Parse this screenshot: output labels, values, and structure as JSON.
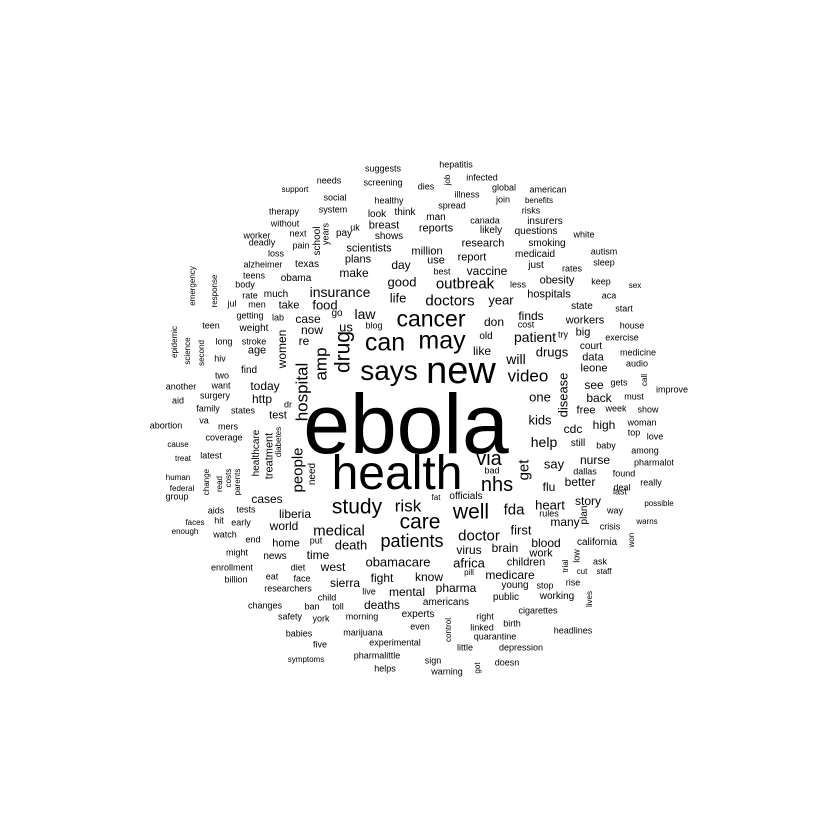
{
  "word_cloud": {
    "text_color": "#000000",
    "background": "#ffffff",
    "words": [
      {
        "text": "ebola",
        "weight": 100
      },
      {
        "text": "health",
        "weight": 58
      },
      {
        "text": "new",
        "weight": 45
      },
      {
        "text": "says",
        "weight": 34
      },
      {
        "text": "may",
        "weight": 30
      },
      {
        "text": "can",
        "weight": 30
      },
      {
        "text": "cancer",
        "weight": 28
      },
      {
        "text": "drug",
        "weight": 25
      },
      {
        "text": "study",
        "weight": 25
      },
      {
        "text": "care",
        "weight": 25
      },
      {
        "text": "well",
        "weight": 25
      },
      {
        "text": "via",
        "weight": 24
      },
      {
        "text": "nhs",
        "weight": 24
      },
      {
        "text": "patients",
        "weight": 22
      },
      {
        "text": "hospital",
        "weight": 20
      },
      {
        "text": "video",
        "weight": 20
      },
      {
        "text": "amp",
        "weight": 20
      },
      {
        "text": "doctor",
        "weight": 18
      },
      {
        "text": "people",
        "weight": 18
      },
      {
        "text": "risk",
        "weight": 20
      },
      {
        "text": "medical",
        "weight": 18
      },
      {
        "text": "fda",
        "weight": 18
      },
      {
        "text": "get",
        "weight": 18
      },
      {
        "text": "doctors",
        "weight": 18
      },
      {
        "text": "outbreak",
        "weight": 18
      },
      {
        "text": "will",
        "weight": 17
      },
      {
        "text": "patient",
        "weight": 17
      },
      {
        "text": "help",
        "weight": 17
      },
      {
        "text": "insurance",
        "weight": 16
      },
      {
        "text": "law",
        "weight": 17
      },
      {
        "text": "us",
        "weight": 16
      },
      {
        "text": "say",
        "weight": 16
      },
      {
        "text": "kids",
        "weight": 16
      },
      {
        "text": "one",
        "weight": 16
      },
      {
        "text": "obamacare",
        "weight": 16
      },
      {
        "text": "africa",
        "weight": 16
      },
      {
        "text": "heart",
        "weight": 15
      },
      {
        "text": "first",
        "weight": 15
      },
      {
        "text": "good",
        "weight": 15
      },
      {
        "text": "life",
        "weight": 15
      },
      {
        "text": "year",
        "weight": 15
      },
      {
        "text": "food",
        "weight": 15
      },
      {
        "text": "drugs",
        "weight": 15
      },
      {
        "text": "disease",
        "weight": 15
      },
      {
        "text": "death",
        "weight": 15
      },
      {
        "text": "liberia",
        "weight": 14
      },
      {
        "text": "make",
        "weight": 14
      },
      {
        "text": "day",
        "weight": 14
      },
      {
        "text": "vaccine",
        "weight": 14
      },
      {
        "text": "like",
        "weight": 14
      },
      {
        "text": "today",
        "weight": 14
      },
      {
        "text": "women",
        "weight": 14
      },
      {
        "text": "virus",
        "weight": 14
      },
      {
        "text": "brain",
        "weight": 14
      },
      {
        "text": "blood",
        "weight": 14
      },
      {
        "text": "don",
        "weight": 14
      },
      {
        "text": "cdc",
        "weight": 14
      },
      {
        "text": "high",
        "weight": 14
      },
      {
        "text": "finds",
        "weight": 13
      },
      {
        "text": "case",
        "weight": 13
      },
      {
        "text": "now",
        "weight": 13
      },
      {
        "text": "world",
        "weight": 13
      },
      {
        "text": "http",
        "weight": 13
      },
      {
        "text": "cases",
        "weight": 13
      },
      {
        "text": "time",
        "weight": 13
      },
      {
        "text": "west",
        "weight": 13
      },
      {
        "text": "fight",
        "weight": 13
      },
      {
        "text": "sierra",
        "weight": 13
      },
      {
        "text": "know",
        "weight": 13
      },
      {
        "text": "pharma",
        "weight": 13
      },
      {
        "text": "mental",
        "weight": 13
      },
      {
        "text": "deaths",
        "weight": 13
      },
      {
        "text": "medicare",
        "weight": 13
      },
      {
        "text": "children",
        "weight": 12
      },
      {
        "text": "flu",
        "weight": 13
      },
      {
        "text": "nurse",
        "weight": 13
      },
      {
        "text": "better",
        "weight": 13
      },
      {
        "text": "story",
        "weight": 13
      },
      {
        "text": "many",
        "weight": 13
      },
      {
        "text": "hospitals",
        "weight": 12
      },
      {
        "text": "obesity",
        "weight": 12
      },
      {
        "text": "workers",
        "weight": 12
      },
      {
        "text": "back",
        "weight": 13
      },
      {
        "text": "see",
        "weight": 13
      },
      {
        "text": "leone",
        "weight": 12
      },
      {
        "text": "data",
        "weight": 12
      },
      {
        "text": "report",
        "weight": 12
      },
      {
        "text": "research",
        "weight": 12
      },
      {
        "text": "million",
        "weight": 12
      },
      {
        "text": "use",
        "weight": 12
      },
      {
        "text": "plans",
        "weight": 12
      },
      {
        "text": "scientists",
        "weight": 12
      },
      {
        "text": "breast",
        "weight": 12
      },
      {
        "text": "reports",
        "weight": 12
      },
      {
        "text": "take",
        "weight": 12
      },
      {
        "text": "age",
        "weight": 12
      },
      {
        "text": "re",
        "weight": 13
      },
      {
        "text": "test",
        "weight": 12
      },
      {
        "text": "home",
        "weight": 12
      },
      {
        "text": "work",
        "weight": 12
      },
      {
        "text": "free",
        "weight": 12
      },
      {
        "text": "still",
        "weight": 11
      },
      {
        "text": "treatment",
        "weight": 12
      },
      {
        "text": "healthcare",
        "weight": 11
      },
      {
        "text": "need",
        "weight": 11
      },
      {
        "text": "go",
        "weight": 11
      },
      {
        "text": "obama",
        "weight": 11
      },
      {
        "text": "much",
        "weight": 11
      },
      {
        "text": "weight",
        "weight": 11
      },
      {
        "text": "find",
        "weight": 11
      },
      {
        "text": "school",
        "weight": 11
      },
      {
        "text": "americans",
        "weight": 11
      },
      {
        "text": "experts",
        "weight": 11
      },
      {
        "text": "news",
        "weight": 11
      },
      {
        "text": "young",
        "weight": 11
      },
      {
        "text": "public",
        "weight": 11
      },
      {
        "text": "working",
        "weight": 11
      },
      {
        "text": "california",
        "weight": 11
      },
      {
        "text": "plan",
        "weight": 11
      },
      {
        "text": "court",
        "weight": 11
      },
      {
        "text": "state",
        "weight": 11
      },
      {
        "text": "big",
        "weight": 12
      },
      {
        "text": "just",
        "weight": 11
      },
      {
        "text": "old",
        "weight": 11
      },
      {
        "text": "cost",
        "weight": 10
      },
      {
        "text": "less",
        "weight": 10
      },
      {
        "text": "best",
        "weight": 10
      },
      {
        "text": "texas",
        "weight": 11
      },
      {
        "text": "pay",
        "weight": 11
      },
      {
        "text": "uk",
        "weight": 10
      },
      {
        "text": "think",
        "weight": 11
      },
      {
        "text": "look",
        "weight": 11
      },
      {
        "text": "man",
        "weight": 11
      },
      {
        "text": "shows",
        "weight": 11
      },
      {
        "text": "likely",
        "weight": 11
      },
      {
        "text": "canada",
        "weight": 10
      },
      {
        "text": "questions",
        "weight": 11
      },
      {
        "text": "smoking",
        "weight": 11
      },
      {
        "text": "medicaid",
        "weight": 11
      },
      {
        "text": "insurers",
        "weight": 11
      },
      {
        "text": "white",
        "weight": 10
      },
      {
        "text": "autism",
        "weight": 10
      },
      {
        "text": "sleep",
        "weight": 10
      },
      {
        "text": "rates",
        "weight": 10
      },
      {
        "text": "keep",
        "weight": 10
      },
      {
        "text": "aca",
        "weight": 10
      },
      {
        "text": "start",
        "weight": 10
      },
      {
        "text": "sex",
        "weight": 9
      },
      {
        "text": "exercise",
        "weight": 10
      },
      {
        "text": "house",
        "weight": 10
      },
      {
        "text": "medicine",
        "weight": 10
      },
      {
        "text": "audio",
        "weight": 10
      },
      {
        "text": "improve",
        "weight": 10
      },
      {
        "text": "call",
        "weight": 9
      },
      {
        "text": "gets",
        "weight": 10
      },
      {
        "text": "must",
        "weight": 10
      },
      {
        "text": "week",
        "weight": 10
      },
      {
        "text": "show",
        "weight": 10
      },
      {
        "text": "woman",
        "weight": 10
      },
      {
        "text": "top",
        "weight": 10
      },
      {
        "text": "love",
        "weight": 10
      },
      {
        "text": "among",
        "weight": 10
      },
      {
        "text": "pharmalot",
        "weight": 10
      },
      {
        "text": "found",
        "weight": 10
      },
      {
        "text": "deal",
        "weight": 10
      },
      {
        "text": "really",
        "weight": 10
      },
      {
        "text": "last",
        "weight": 10
      },
      {
        "text": "possible",
        "weight": 9
      },
      {
        "text": "warns",
        "weight": 9
      },
      {
        "text": "won",
        "weight": 9
      },
      {
        "text": "crisis",
        "weight": 10
      },
      {
        "text": "way",
        "weight": 10
      },
      {
        "text": "baby",
        "weight": 10
      },
      {
        "text": "dallas",
        "weight": 10
      },
      {
        "text": "rules",
        "weight": 10
      },
      {
        "text": "ask",
        "weight": 10
      },
      {
        "text": "staff",
        "weight": 9
      },
      {
        "text": "low",
        "weight": 10
      },
      {
        "text": "trial",
        "weight": 9
      },
      {
        "text": "cut",
        "weight": 9
      },
      {
        "text": "rise",
        "weight": 10
      },
      {
        "text": "lives",
        "weight": 9
      },
      {
        "text": "stop",
        "weight": 10
      },
      {
        "text": "cigarettes",
        "weight": 10
      },
      {
        "text": "headlines",
        "weight": 10
      },
      {
        "text": "birth",
        "weight": 10
      },
      {
        "text": "right",
        "weight": 10
      },
      {
        "text": "linked",
        "weight": 10
      },
      {
        "text": "quarantine",
        "weight": 10
      },
      {
        "text": "depression",
        "weight": 10
      },
      {
        "text": "doesn",
        "weight": 10
      },
      {
        "text": "got",
        "weight": 9
      },
      {
        "text": "little",
        "weight": 10
      },
      {
        "text": "control",
        "weight": 9
      },
      {
        "text": "sign",
        "weight": 10
      },
      {
        "text": "warning",
        "weight": 10
      },
      {
        "text": "even",
        "weight": 10
      },
      {
        "text": "experimental",
        "weight": 10
      },
      {
        "text": "pharmalittle",
        "weight": 10
      },
      {
        "text": "helps",
        "weight": 10
      },
      {
        "text": "marijuana",
        "weight": 10
      },
      {
        "text": "morning",
        "weight": 10
      },
      {
        "text": "live",
        "weight": 10
      },
      {
        "text": "toll",
        "weight": 10
      },
      {
        "text": "ban",
        "weight": 10
      },
      {
        "text": "child",
        "weight": 10
      },
      {
        "text": "york",
        "weight": 10
      },
      {
        "text": "five",
        "weight": 10
      },
      {
        "text": "babies",
        "weight": 10
      },
      {
        "text": "symptoms",
        "weight": 9
      },
      {
        "text": "safety",
        "weight": 10
      },
      {
        "text": "changes",
        "weight": 10
      },
      {
        "text": "researchers",
        "weight": 10
      },
      {
        "text": "face",
        "weight": 10
      },
      {
        "text": "eat",
        "weight": 10
      },
      {
        "text": "billion",
        "weight": 10
      },
      {
        "text": "diet",
        "weight": 10
      },
      {
        "text": "put",
        "weight": 10
      },
      {
        "text": "enrollment",
        "weight": 10
      },
      {
        "text": "might",
        "weight": 10
      },
      {
        "text": "end",
        "weight": 10
      },
      {
        "text": "watch",
        "weight": 10
      },
      {
        "text": "early",
        "weight": 10
      },
      {
        "text": "enough",
        "weight": 9
      },
      {
        "text": "faces",
        "weight": 9
      },
      {
        "text": "hit",
        "weight": 10
      },
      {
        "text": "aids",
        "weight": 10
      },
      {
        "text": "tests",
        "weight": 10
      },
      {
        "text": "group",
        "weight": 10
      },
      {
        "text": "federal",
        "weight": 9
      },
      {
        "text": "human",
        "weight": 9
      },
      {
        "text": "treat",
        "weight": 9
      },
      {
        "text": "cause",
        "weight": 9
      },
      {
        "text": "latest",
        "weight": 10
      },
      {
        "text": "change",
        "weight": 9
      },
      {
        "text": "read",
        "weight": 9
      },
      {
        "text": "costs",
        "weight": 9
      },
      {
        "text": "parents",
        "weight": 9
      },
      {
        "text": "diabetes",
        "weight": 9
      },
      {
        "text": "coverage",
        "weight": 10
      },
      {
        "text": "abortion",
        "weight": 10
      },
      {
        "text": "va",
        "weight": 10
      },
      {
        "text": "mers",
        "weight": 10
      },
      {
        "text": "aid",
        "weight": 10
      },
      {
        "text": "family",
        "weight": 10
      },
      {
        "text": "states",
        "weight": 10
      },
      {
        "text": "dr",
        "weight": 10
      },
      {
        "text": "another",
        "weight": 10
      },
      {
        "text": "want",
        "weight": 10
      },
      {
        "text": "surgery",
        "weight": 10
      },
      {
        "text": "two",
        "weight": 10
      },
      {
        "text": "hiv",
        "weight": 10
      },
      {
        "text": "stroke",
        "weight": 10
      },
      {
        "text": "long",
        "weight": 10
      },
      {
        "text": "second",
        "weight": 10
      },
      {
        "text": "science",
        "weight": 9
      },
      {
        "text": "epidemic",
        "weight": 9
      },
      {
        "text": "teen",
        "weight": 10
      },
      {
        "text": "getting",
        "weight": 10
      },
      {
        "text": "jul",
        "weight": 10
      },
      {
        "text": "men",
        "weight": 10
      },
      {
        "text": "lab",
        "weight": 10
      },
      {
        "text": "rate",
        "weight": 10
      },
      {
        "text": "body",
        "weight": 10
      },
      {
        "text": "teens",
        "weight": 10
      },
      {
        "text": "alzheimer",
        "weight": 10
      },
      {
        "text": "response",
        "weight": 9
      },
      {
        "text": "emergency",
        "weight": 9
      },
      {
        "text": "loss",
        "weight": 10
      },
      {
        "text": "deadly",
        "weight": 10
      },
      {
        "text": "worker",
        "weight": 10
      },
      {
        "text": "pain",
        "weight": 10
      },
      {
        "text": "years",
        "weight": 10
      },
      {
        "text": "without",
        "weight": 10
      },
      {
        "text": "next",
        "weight": 10
      },
      {
        "text": "therapy",
        "weight": 10
      },
      {
        "text": "system",
        "weight": 10
      },
      {
        "text": "social",
        "weight": 10
      },
      {
        "text": "support",
        "weight": 9
      },
      {
        "text": "needs",
        "weight": 10
      },
      {
        "text": "healthy",
        "weight": 10
      },
      {
        "text": "screening",
        "weight": 10
      },
      {
        "text": "suggests",
        "weight": 10
      },
      {
        "text": "dies",
        "weight": 10
      },
      {
        "text": "job",
        "weight": 9
      },
      {
        "text": "spread",
        "weight": 10
      },
      {
        "text": "illness",
        "weight": 10
      },
      {
        "text": "infected",
        "weight": 10
      },
      {
        "text": "hepatitis",
        "weight": 10
      },
      {
        "text": "global",
        "weight": 10
      },
      {
        "text": "join",
        "weight": 10
      },
      {
        "text": "american",
        "weight": 10
      },
      {
        "text": "benefits",
        "weight": 9
      },
      {
        "text": "risks",
        "weight": 10
      },
      {
        "text": "try",
        "weight": 10
      },
      {
        "text": "blog",
        "weight": 10
      },
      {
        "text": "bad",
        "weight": 10
      },
      {
        "text": "pill",
        "weight": 9
      },
      {
        "text": "fat",
        "weight": 9
      },
      {
        "text": "officials",
        "weight": 11
      }
    ]
  }
}
